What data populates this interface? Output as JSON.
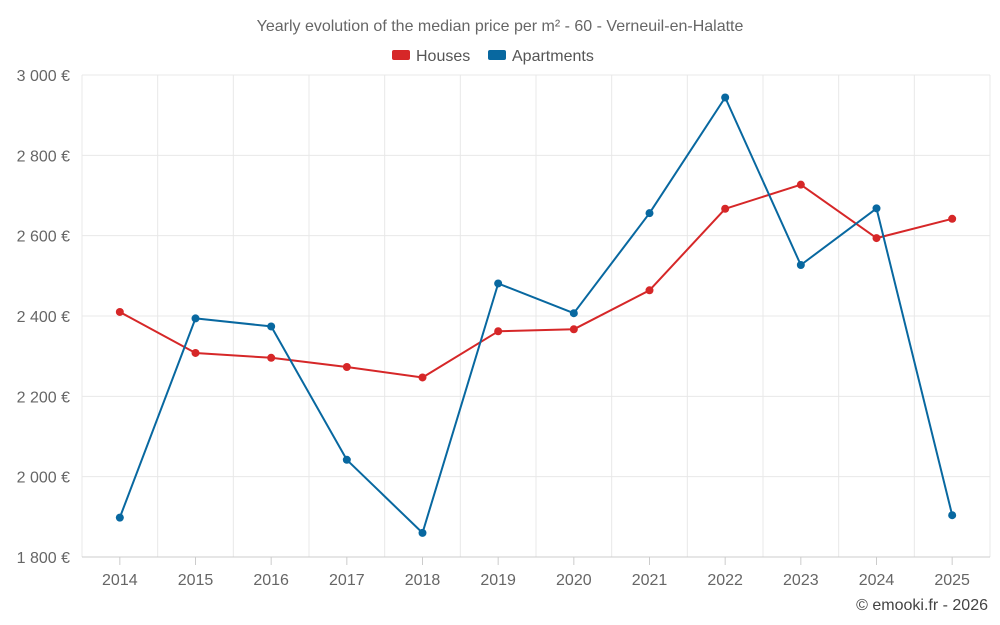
{
  "chart_data": {
    "type": "line",
    "title": "Yearly evolution of the median price per m² - 60 - Verneuil-en-Halatte",
    "categories": [
      "2014",
      "2015",
      "2016",
      "2017",
      "2018",
      "2019",
      "2020",
      "2021",
      "2022",
      "2023",
      "2024",
      "2025"
    ],
    "series": [
      {
        "name": "Houses",
        "color": "#d62728",
        "values": [
          2410,
          2308,
          2296,
          2273,
          2247,
          2362,
          2367,
          2464,
          2667,
          2727,
          2594,
          2642
        ]
      },
      {
        "name": "Apartments",
        "color": "#0868a0",
        "values": [
          1898,
          2394,
          2374,
          2042,
          1860,
          2481,
          2407,
          2656,
          2944,
          2527,
          2668,
          1904
        ]
      }
    ],
    "ylim": [
      1800,
      3000
    ],
    "yticks": [
      {
        "value": 1800,
        "label": "1 800 €"
      },
      {
        "value": 2000,
        "label": "2 000 €"
      },
      {
        "value": 2200,
        "label": "2 200 €"
      },
      {
        "value": 2400,
        "label": "2 400 €"
      },
      {
        "value": 2600,
        "label": "2 600 €"
      },
      {
        "value": 2800,
        "label": "2 800 €"
      },
      {
        "value": 3000,
        "label": "3 000 €"
      }
    ],
    "xlabel": "",
    "ylabel": "",
    "grid": true,
    "legend_position": "top-center"
  },
  "credit": "© emooki.fr - 2026"
}
